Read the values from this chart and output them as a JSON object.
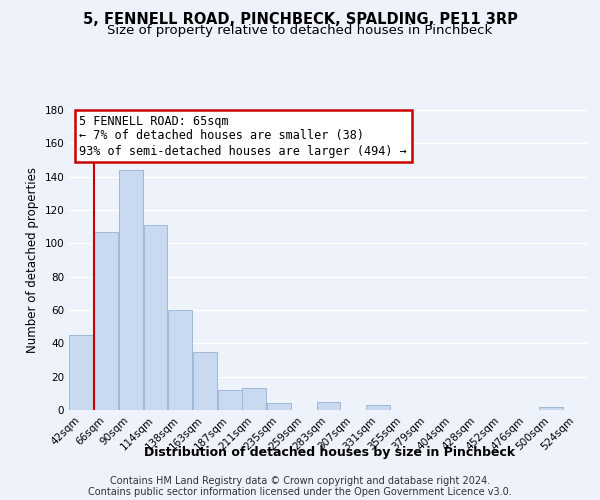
{
  "title": "5, FENNELL ROAD, PINCHBECK, SPALDING, PE11 3RP",
  "subtitle": "Size of property relative to detached houses in Pinchbeck",
  "xlabel": "Distribution of detached houses by size in Pinchbeck",
  "ylabel": "Number of detached properties",
  "bin_labels": [
    "42sqm",
    "66sqm",
    "90sqm",
    "114sqm",
    "138sqm",
    "163sqm",
    "187sqm",
    "211sqm",
    "235sqm",
    "259sqm",
    "283sqm",
    "307sqm",
    "331sqm",
    "355sqm",
    "379sqm",
    "404sqm",
    "428sqm",
    "452sqm",
    "476sqm",
    "500sqm",
    "524sqm"
  ],
  "bar_heights": [
    45,
    107,
    144,
    111,
    60,
    35,
    12,
    13,
    4,
    0,
    5,
    0,
    3,
    0,
    0,
    0,
    0,
    0,
    0,
    2,
    0
  ],
  "bar_color": "#c8d9f0",
  "bar_edge_color": "#a0b8d8",
  "ylim": [
    0,
    180
  ],
  "yticks": [
    0,
    20,
    40,
    60,
    80,
    100,
    120,
    140,
    160,
    180
  ],
  "property_line_color": "#cc0000",
  "annotation_title": "5 FENNELL ROAD: 65sqm",
  "annotation_line1": "← 7% of detached houses are smaller (38)",
  "annotation_line2": "93% of semi-detached houses are larger (494) →",
  "annotation_box_color": "#ffffff",
  "annotation_box_edge": "#cc0000",
  "footer_line1": "Contains HM Land Registry data © Crown copyright and database right 2024.",
  "footer_line2": "Contains public sector information licensed under the Open Government Licence v3.0.",
  "background_color": "#eef2fb",
  "grid_color": "#ffffff",
  "title_fontsize": 10.5,
  "subtitle_fontsize": 9.5,
  "xlabel_fontsize": 9,
  "ylabel_fontsize": 8.5,
  "tick_fontsize": 7.5,
  "footer_fontsize": 7.0
}
